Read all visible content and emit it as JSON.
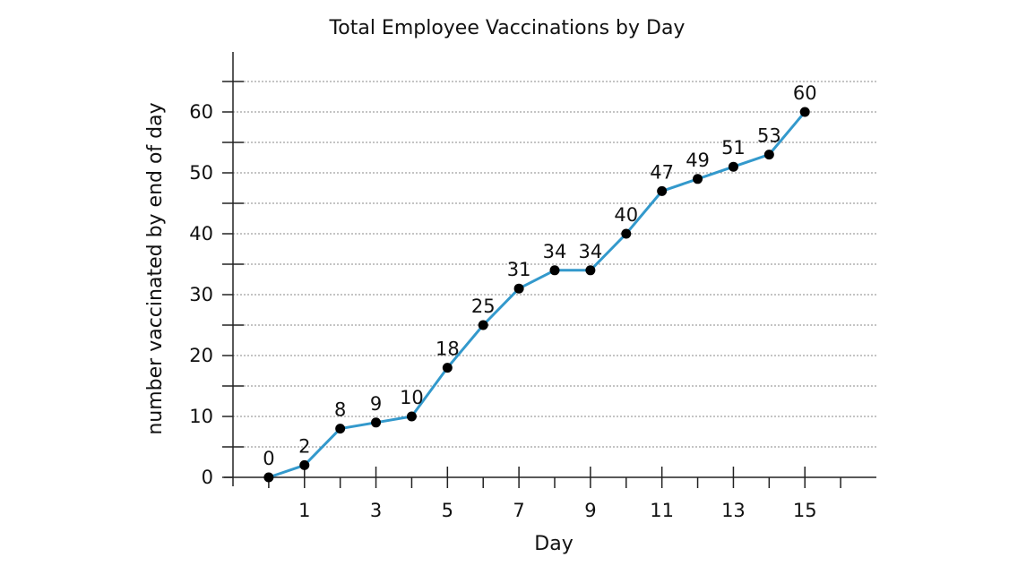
{
  "chart_data": {
    "type": "line",
    "title": "Total Employee Vaccinations by Day",
    "xlabel": "Day",
    "ylabel": "number vaccinated by end of day",
    "x": [
      0,
      1,
      2,
      3,
      4,
      5,
      6,
      7,
      8,
      9,
      10,
      11,
      12,
      13,
      14,
      15
    ],
    "values": [
      0,
      2,
      8,
      9,
      10,
      18,
      25,
      31,
      34,
      34,
      40,
      47,
      49,
      51,
      53,
      60
    ],
    "data_labels": [
      "0",
      "2",
      "8",
      "9",
      "10",
      "18",
      "25",
      "31",
      "34",
      "34",
      "40",
      "47",
      "49",
      "51",
      "53",
      "60"
    ],
    "xlim": [
      -1,
      17
    ],
    "ylim": [
      0,
      65
    ],
    "x_ticks": [
      1,
      3,
      5,
      7,
      9,
      11,
      13,
      15
    ],
    "x_tick_labels": [
      "1",
      "3",
      "5",
      "7",
      "9",
      "11",
      "13",
      "15"
    ],
    "y_ticks": [
      0,
      10,
      20,
      30,
      40,
      50,
      60
    ],
    "y_tick_labels": [
      "0",
      "10",
      "20",
      "30",
      "40",
      "50",
      "60"
    ],
    "grid": true,
    "legend": "none",
    "line_color": "#3399cc",
    "marker_color": "#000000"
  }
}
